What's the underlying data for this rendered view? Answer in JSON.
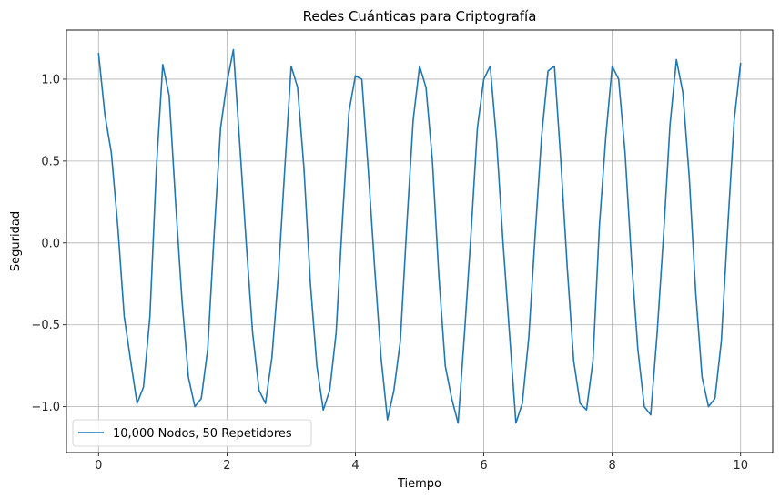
{
  "chart_data": {
    "type": "line",
    "title": "Redes Cuánticas para Criptografía",
    "xlabel": "Tiempo",
    "ylabel": "Seguridad",
    "xlim": [
      -0.5,
      10.5
    ],
    "ylim": [
      -1.28,
      1.3
    ],
    "xticks": [
      0,
      2,
      4,
      6,
      8,
      10
    ],
    "xtick_labels": [
      "0",
      "2",
      "4",
      "6",
      "8",
      "10"
    ],
    "yticks": [
      -1.0,
      -0.5,
      0.0,
      0.5,
      1.0
    ],
    "ytick_labels": [
      "−1.0",
      "−0.5",
      "0.0",
      "0.5",
      "1.0"
    ],
    "grid": true,
    "legend_position": "lower-left",
    "series": [
      {
        "name": "10,000 Nodos, 50 Repetidores",
        "color": "#1f77b4",
        "x": [
          0.0,
          0.1,
          0.2,
          0.3,
          0.4,
          0.5,
          0.6,
          0.7,
          0.8,
          0.9,
          1.0,
          1.1,
          1.2,
          1.3,
          1.4,
          1.5,
          1.6,
          1.7,
          1.8,
          1.9,
          2.0,
          2.1,
          2.2,
          2.3,
          2.4,
          2.5,
          2.6,
          2.7,
          2.8,
          2.9,
          3.0,
          3.1,
          3.2,
          3.3,
          3.4,
          3.5,
          3.6,
          3.7,
          3.8,
          3.9,
          4.0,
          4.1,
          4.2,
          4.3,
          4.4,
          4.5,
          4.6,
          4.7,
          4.8,
          4.9,
          5.0,
          5.1,
          5.2,
          5.3,
          5.4,
          5.5,
          5.6,
          5.7,
          5.8,
          5.9,
          6.0,
          6.1,
          6.2,
          6.3,
          6.4,
          6.5,
          6.6,
          6.7,
          6.8,
          6.9,
          7.0,
          7.1,
          7.2,
          7.3,
          7.4,
          7.5,
          7.6,
          7.7,
          7.8,
          7.9,
          8.0,
          8.1,
          8.2,
          8.3,
          8.4,
          8.5,
          8.6,
          8.7,
          8.8,
          8.9,
          9.0,
          9.1,
          9.2,
          9.3,
          9.4,
          9.5,
          9.6,
          9.7,
          9.8,
          9.9,
          10.0
        ],
        "values": [
          1.16,
          0.78,
          0.55,
          0.1,
          -0.45,
          -0.72,
          -0.98,
          -0.88,
          -0.45,
          0.45,
          1.09,
          0.9,
          0.25,
          -0.35,
          -0.82,
          -1.0,
          -0.95,
          -0.65,
          0.05,
          0.7,
          0.98,
          1.18,
          0.6,
          0.0,
          -0.55,
          -0.9,
          -0.98,
          -0.7,
          -0.2,
          0.45,
          1.08,
          0.95,
          0.45,
          -0.25,
          -0.75,
          -1.02,
          -0.9,
          -0.55,
          0.15,
          0.8,
          1.02,
          1.0,
          0.45,
          -0.15,
          -0.7,
          -1.08,
          -0.9,
          -0.6,
          0.1,
          0.75,
          1.08,
          0.95,
          0.5,
          -0.2,
          -0.75,
          -0.95,
          -1.1,
          -0.55,
          0.05,
          0.7,
          1.0,
          1.08,
          0.62,
          0.0,
          -0.55,
          -1.1,
          -0.98,
          -0.58,
          0.05,
          0.65,
          1.05,
          1.08,
          0.5,
          -0.15,
          -0.72,
          -0.98,
          -1.02,
          -0.72,
          0.1,
          0.65,
          1.08,
          1.0,
          0.55,
          -0.1,
          -0.65,
          -1.0,
          -1.05,
          -0.55,
          0.05,
          0.72,
          1.12,
          0.92,
          0.4,
          -0.3,
          -0.82,
          -1.0,
          -0.95,
          -0.6,
          0.1,
          0.75,
          1.1
        ]
      }
    ]
  }
}
